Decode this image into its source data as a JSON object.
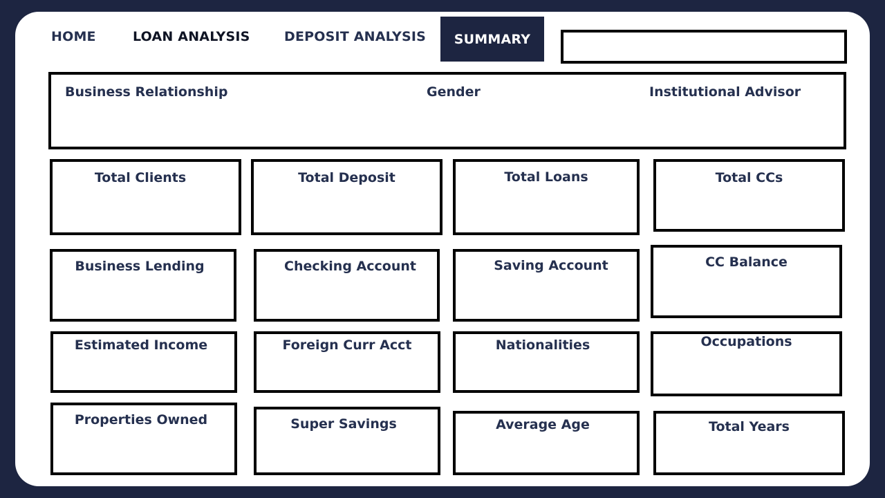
{
  "nav": {
    "home": "HOME",
    "loan_analysis": "LOAN ANALYSIS",
    "deposit_analysis": "DEPOSIT ANALYSIS",
    "summary": "SUMMARY"
  },
  "search": {
    "value": ""
  },
  "filters": {
    "business_relationship": "Business Relationship",
    "gender": "Gender",
    "institutional_advisor": "Institutional Advisor"
  },
  "kpis": {
    "total_clients": "Total Clients",
    "total_deposit": "Total Deposit",
    "total_loans": "Total Loans",
    "total_ccs": "Total CCs",
    "business_lending": "Business Lending",
    "checking_account": "Checking Account",
    "saving_account": "Saving Account",
    "cc_balance": "CC Balance",
    "estimated_income": "Estimated Income",
    "foreign_curr_acct": "Foreign Curr Acct",
    "nationalities": "Nationalities",
    "occupations": "Occupations",
    "properties_owned": "Properties Owned",
    "super_savings": "Super Savings",
    "average_age": "Average Age",
    "total_years": "Total Years"
  },
  "colors": {
    "background": "#1d2541",
    "card": "#ffffff",
    "text": "#25304f",
    "active_tab": "#1d2541"
  }
}
